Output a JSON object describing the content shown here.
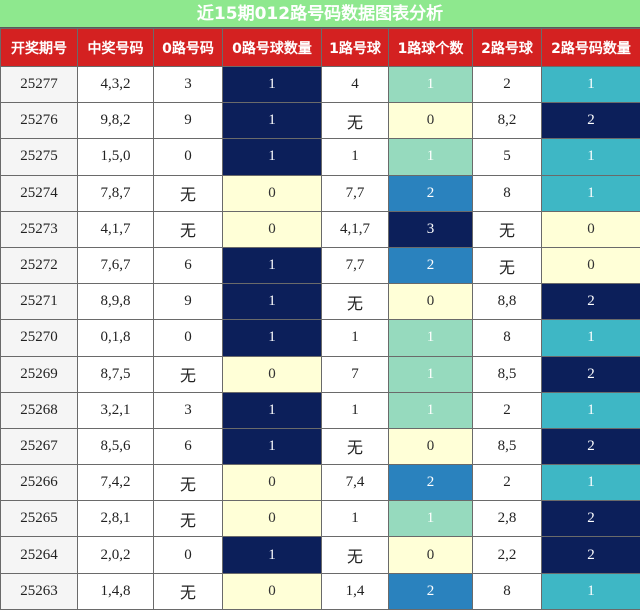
{
  "title": "近15期012路号码数据图表分析",
  "columns": [
    "开奖期号",
    "中奖号码",
    "0路号码",
    "0路号球数量",
    "1路号球",
    "1路球个数",
    "2路号球",
    "2路号码数量"
  ],
  "none_text": "无",
  "colors": {
    "title_bg": "#8ee88e",
    "header_bg": "#d42121",
    "zero_light": "#ffffd7",
    "one_navy": "#0c1f5a",
    "one_group0": "#0c1f5a",
    "group1": {
      "0": "#ffffd7",
      "1": "#96dabe",
      "2": "#2a82be",
      "3": "#0c1f5a"
    },
    "group2": {
      "0": "#ffffd7",
      "1": "#3eb7c5",
      "2": "#0c1f5a"
    }
  },
  "chart_data": {
    "type": "table",
    "title": "近15期012路号码数据图表分析",
    "rows": [
      {
        "issue": "25277",
        "number": "4,3,2",
        "r0": "3",
        "c0": 1,
        "r1": "4",
        "c1": 1,
        "r2": "2",
        "c2": 1
      },
      {
        "issue": "25276",
        "number": "9,8,2",
        "r0": "9",
        "c0": 1,
        "r1": "无",
        "c1": 0,
        "r2": "8,2",
        "c2": 2
      },
      {
        "issue": "25275",
        "number": "1,5,0",
        "r0": "0",
        "c0": 1,
        "r1": "1",
        "c1": 1,
        "r2": "5",
        "c2": 1
      },
      {
        "issue": "25274",
        "number": "7,8,7",
        "r0": "无",
        "c0": 0,
        "r1": "7,7",
        "c1": 2,
        "r2": "8",
        "c2": 1
      },
      {
        "issue": "25273",
        "number": "4,1,7",
        "r0": "无",
        "c0": 0,
        "r1": "4,1,7",
        "c1": 3,
        "r2": "无",
        "c2": 0
      },
      {
        "issue": "25272",
        "number": "7,6,7",
        "r0": "6",
        "c0": 1,
        "r1": "7,7",
        "c1": 2,
        "r2": "无",
        "c2": 0
      },
      {
        "issue": "25271",
        "number": "8,9,8",
        "r0": "9",
        "c0": 1,
        "r1": "无",
        "c1": 0,
        "r2": "8,8",
        "c2": 2
      },
      {
        "issue": "25270",
        "number": "0,1,8",
        "r0": "0",
        "c0": 1,
        "r1": "1",
        "c1": 1,
        "r2": "8",
        "c2": 1
      },
      {
        "issue": "25269",
        "number": "8,7,5",
        "r0": "无",
        "c0": 0,
        "r1": "7",
        "c1": 1,
        "r2": "8,5",
        "c2": 2
      },
      {
        "issue": "25268",
        "number": "3,2,1",
        "r0": "3",
        "c0": 1,
        "r1": "1",
        "c1": 1,
        "r2": "2",
        "c2": 1
      },
      {
        "issue": "25267",
        "number": "8,5,6",
        "r0": "6",
        "c0": 1,
        "r1": "无",
        "c1": 0,
        "r2": "8,5",
        "c2": 2
      },
      {
        "issue": "25266",
        "number": "7,4,2",
        "r0": "无",
        "c0": 0,
        "r1": "7,4",
        "c1": 2,
        "r2": "2",
        "c2": 1
      },
      {
        "issue": "25265",
        "number": "2,8,1",
        "r0": "无",
        "c0": 0,
        "r1": "1",
        "c1": 1,
        "r2": "2,8",
        "c2": 2
      },
      {
        "issue": "25264",
        "number": "2,0,2",
        "r0": "0",
        "c0": 1,
        "r1": "无",
        "c1": 0,
        "r2": "2,2",
        "c2": 2
      },
      {
        "issue": "25263",
        "number": "1,4,8",
        "r0": "无",
        "c0": 0,
        "r1": "1,4",
        "c1": 2,
        "r2": "8",
        "c2": 1
      }
    ]
  }
}
